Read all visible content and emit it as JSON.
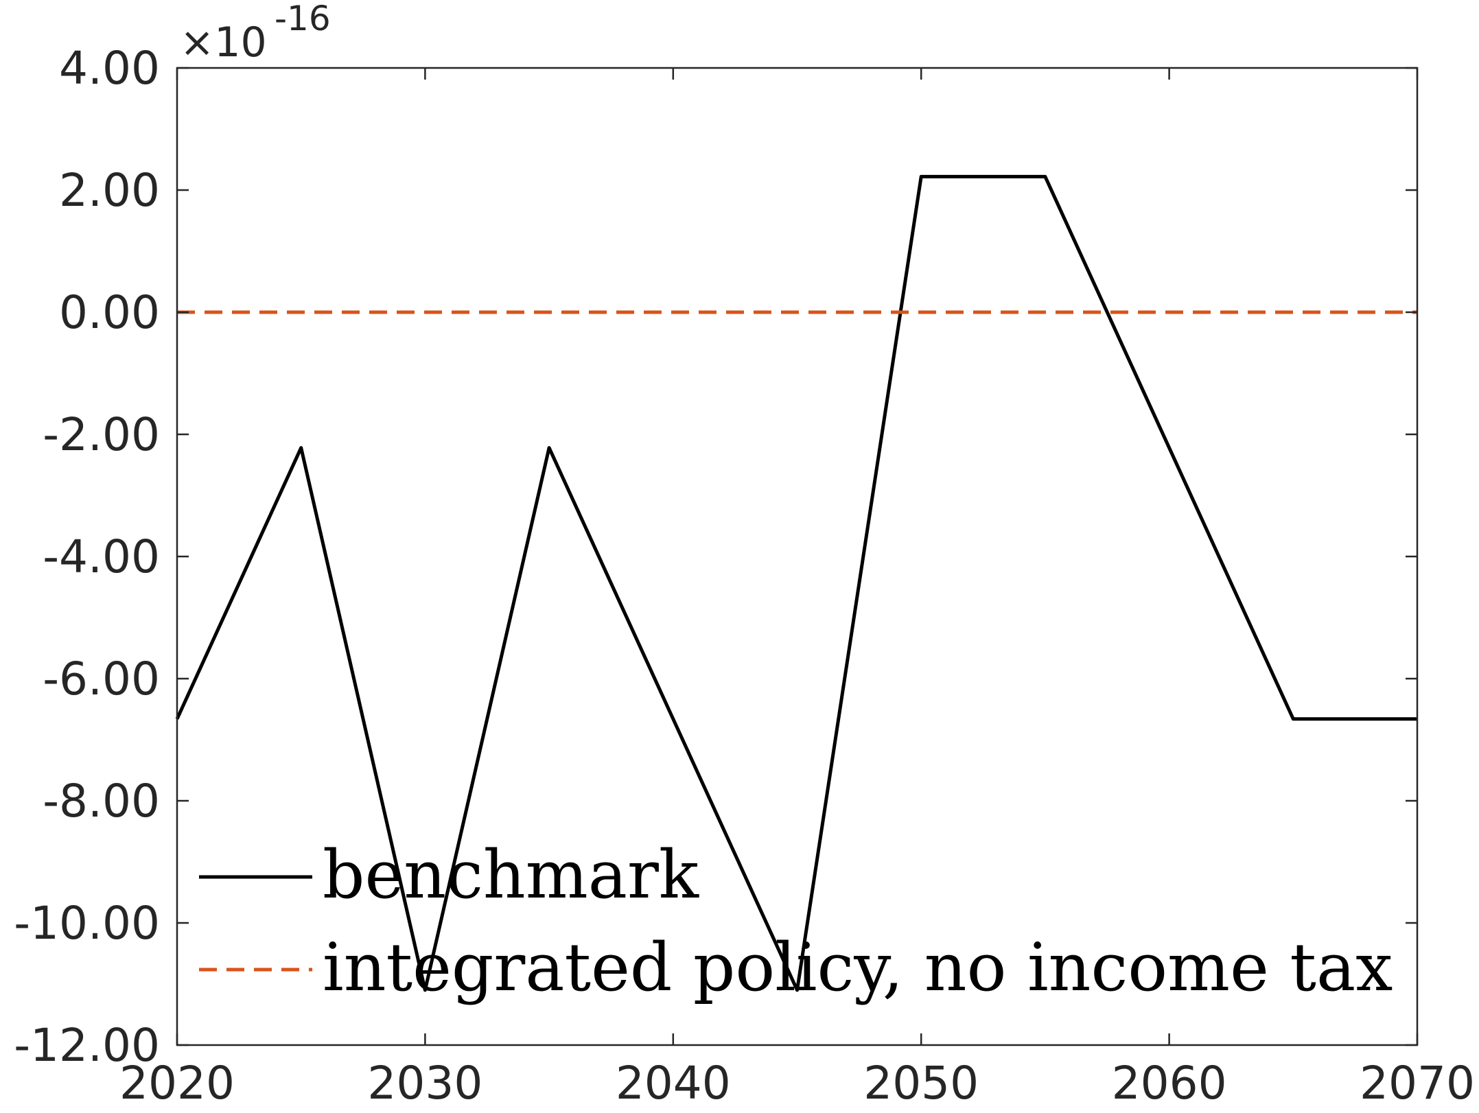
{
  "chart_data": {
    "type": "line",
    "title": "",
    "xlabel": "",
    "ylabel": "",
    "xlim": [
      2020,
      2070
    ],
    "ylim": [
      -12,
      4
    ],
    "y_exponent_label": {
      "times": "×10",
      "power": "-16"
    },
    "x_ticks": [
      "2020",
      "2030",
      "2040",
      "2050",
      "2060",
      "2070"
    ],
    "x_tick_values": [
      2020,
      2030,
      2040,
      2050,
      2060,
      2070
    ],
    "y_ticks": [
      "-12.00",
      "-10.00",
      "-8.00",
      "-6.00",
      "-4.00",
      "-2.00",
      "0.00",
      "2.00",
      "4.00"
    ],
    "y_tick_values": [
      -12,
      -10,
      -8,
      -6,
      -4,
      -2,
      0,
      2,
      4
    ],
    "grid": false,
    "legend_position": "bottom-left",
    "series": [
      {
        "name": "benchmark",
        "color": "#000000",
        "style": "solid",
        "x": [
          2020,
          2025,
          2030,
          2035,
          2040,
          2045,
          2050,
          2055,
          2060,
          2065,
          2070
        ],
        "y": [
          -6.66,
          -2.22,
          -11.1,
          -2.22,
          -6.66,
          -11.1,
          2.22,
          2.22,
          -2.22,
          -6.66,
          -6.66
        ]
      },
      {
        "name": "integrated policy, no income tax",
        "color": "#D95319",
        "style": "dashed",
        "x": [
          2020,
          2070
        ],
        "y": [
          0,
          0
        ]
      }
    ]
  }
}
